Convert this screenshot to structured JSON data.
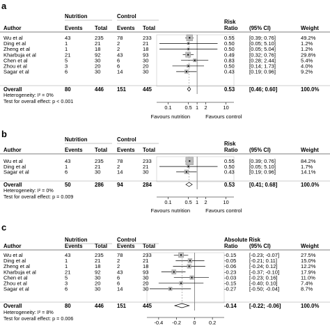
{
  "chart_data": [
    {
      "type": "forest",
      "panel_label": "a",
      "group_headers": [
        "Nutrition",
        "Control"
      ],
      "columns": [
        "Author",
        "Events",
        "Total",
        "Events",
        "Total",
        "Risk Ratio",
        "(95% CI)",
        "Weight"
      ],
      "studies": [
        {
          "author": "Wu et al",
          "e1": "43",
          "t1": "235",
          "e2": "78",
          "t2": "233",
          "est": "0.55",
          "ci": "[0.39; 0.76]",
          "w": "49.2%",
          "v": 0.55,
          "lo": 0.39,
          "hi": 0.76,
          "wn": 49.2
        },
        {
          "author": "Ding et al",
          "e1": "1",
          "t1": "21",
          "e2": "2",
          "t2": "21",
          "est": "0.50",
          "ci": "[0.05; 5.10]",
          "w": "1.2%",
          "v": 0.5,
          "lo": 0.05,
          "hi": 5.1,
          "wn": 1.2
        },
        {
          "author": "Zheng et al",
          "e1": "1",
          "t1": "18",
          "e2": "2",
          "t2": "18",
          "est": "0.50",
          "ci": "[0.05; 5.04]",
          "w": "1.2%",
          "v": 0.5,
          "lo": 0.05,
          "hi": 5.04,
          "wn": 1.2
        },
        {
          "author": "Kharbuja et al",
          "e1": "21",
          "t1": "92",
          "e2": "43",
          "t2": "93",
          "est": "0.49",
          "ci": "[0.32; 0.76]",
          "w": "29.8%",
          "v": 0.49,
          "lo": 0.32,
          "hi": 0.76,
          "wn": 29.8
        },
        {
          "author": "Chen et al",
          "e1": "5",
          "t1": "30",
          "e2": "6",
          "t2": "30",
          "est": "0.83",
          "ci": "[0.28; 2.44]",
          "w": "5.4%",
          "v": 0.83,
          "lo": 0.28,
          "hi": 2.44,
          "wn": 5.4
        },
        {
          "author": "Zhou et al",
          "e1": "3",
          "t1": "20",
          "e2": "6",
          "t2": "20",
          "est": "0.50",
          "ci": "[0.14; 1.73]",
          "w": "4.0%",
          "v": 0.5,
          "lo": 0.14,
          "hi": 1.73,
          "wn": 4.0
        },
        {
          "author": "Sagar et al",
          "e1": "6",
          "t1": "30",
          "e2": "14",
          "t2": "30",
          "est": "0.43",
          "ci": "[0.19; 0.96]",
          "w": "9.2%",
          "v": 0.43,
          "lo": 0.19,
          "hi": 0.96,
          "wn": 9.2
        }
      ],
      "overall": {
        "author": "Overall",
        "e1": "80",
        "t1": "446",
        "e2": "151",
        "t2": "445",
        "est": "0.53",
        "ci": "[0.46; 0.60]",
        "w": "100.0%",
        "v": 0.53,
        "lo": 0.46,
        "hi": 0.6
      },
      "heterogeneity": "Heterogeneity: I² = 0%",
      "test": "Test for overall effect: p < 0.001",
      "scale": "log",
      "xlim": [
        0.05,
        15
      ],
      "null_value": 1,
      "ticks": [
        {
          "v": 0.1,
          "label": "0.1"
        },
        {
          "v": 0.5,
          "label": "0.5"
        },
        {
          "v": 1,
          "label": "1"
        },
        {
          "v": 2,
          "label": "2"
        },
        {
          "v": 10,
          "label": "10"
        }
      ],
      "favours_left": "Favours nutrition",
      "favours_right": "Favours control"
    },
    {
      "type": "forest",
      "panel_label": "b",
      "group_headers": [
        "Nutrition",
        "Control"
      ],
      "columns": [
        "Author",
        "Events",
        "Total",
        "Events",
        "Total",
        "Risk Ratio",
        "(95% CI)",
        "Weight"
      ],
      "studies": [
        {
          "author": "Wu et al",
          "e1": "43",
          "t1": "235",
          "e2": "78",
          "t2": "233",
          "est": "0.55",
          "ci": "[0.39; 0.76]",
          "w": "84.2%",
          "v": 0.55,
          "lo": 0.39,
          "hi": 0.76,
          "wn": 84.2
        },
        {
          "author": "Ding et al",
          "e1": "1",
          "t1": "21",
          "e2": "2",
          "t2": "21",
          "est": "0.50",
          "ci": "[0.05; 5.10]",
          "w": "1.7%",
          "v": 0.5,
          "lo": 0.05,
          "hi": 5.1,
          "wn": 1.7
        },
        {
          "author": "Sagar et al",
          "e1": "6",
          "t1": "30",
          "e2": "14",
          "t2": "30",
          "est": "0.43",
          "ci": "[0.19; 0.96]",
          "w": "14.1%",
          "v": 0.43,
          "lo": 0.19,
          "hi": 0.96,
          "wn": 14.1
        }
      ],
      "overall": {
        "author": "Overall",
        "e1": "50",
        "t1": "286",
        "e2": "94",
        "t2": "284",
        "est": "0.53",
        "ci": "[0.41; 0.68]",
        "w": "100.0%",
        "v": 0.53,
        "lo": 0.41,
        "hi": 0.68
      },
      "heterogeneity": "Heterogeneity: I² = 0%",
      "test": "Test for overall effect: p = 0.009",
      "scale": "log",
      "xlim": [
        0.05,
        15
      ],
      "null_value": 1,
      "ticks": [
        {
          "v": 0.1,
          "label": "0.1"
        },
        {
          "v": 0.5,
          "label": "0.5"
        },
        {
          "v": 1,
          "label": "1"
        },
        {
          "v": 2,
          "label": "2"
        },
        {
          "v": 10,
          "label": "10"
        }
      ],
      "favours_left": "Favours nutrition",
      "favours_right": "Favours control"
    },
    {
      "type": "forest",
      "panel_label": "c",
      "group_headers": [
        "Nutrition",
        "Control"
      ],
      "columns": [
        "Author",
        "Events",
        "Total",
        "Events",
        "Total",
        "Absolute Risk Ratio",
        "(95% CI)",
        "Weight"
      ],
      "studies": [
        {
          "author": "Wu et al",
          "e1": "43",
          "t1": "235",
          "e2": "78",
          "t2": "233",
          "est": "-0.15",
          "ci": "[-0.23; -0.07]",
          "w": "27.5%",
          "v": -0.15,
          "lo": -0.23,
          "hi": -0.07,
          "wn": 27.5
        },
        {
          "author": "Ding et al",
          "e1": "1",
          "t1": "21",
          "e2": "2",
          "t2": "21",
          "est": "-0.05",
          "ci": "[-0.21; 0.11]",
          "w": "15.0%",
          "v": -0.05,
          "lo": -0.21,
          "hi": 0.11,
          "wn": 15.0
        },
        {
          "author": "Zheng et al",
          "e1": "1",
          "t1": "18",
          "e2": "2",
          "t2": "18",
          "est": "-0.06",
          "ci": "[-0.24; 0.12]",
          "w": "12.2%",
          "v": -0.06,
          "lo": -0.24,
          "hi": 0.12,
          "wn": 12.2
        },
        {
          "author": "Kharbuja et al",
          "e1": "21",
          "t1": "92",
          "e2": "43",
          "t2": "93",
          "est": "-0.23",
          "ci": "[-0.37; -0.10]",
          "w": "17.9%",
          "v": -0.23,
          "lo": -0.37,
          "hi": -0.1,
          "wn": 17.9
        },
        {
          "author": "Chen et al",
          "e1": "5",
          "t1": "30",
          "e2": "6",
          "t2": "30",
          "est": "-0.03",
          "ci": "[-0.23; 0.16]",
          "w": "11.0%",
          "v": -0.03,
          "lo": -0.23,
          "hi": 0.16,
          "wn": 11.0
        },
        {
          "author": "Zhou et al",
          "e1": "3",
          "t1": "20",
          "e2": "6",
          "t2": "20",
          "est": "-0.15",
          "ci": "[-0.40; 0.10]",
          "w": "7.4%",
          "v": -0.15,
          "lo": -0.4,
          "hi": 0.1,
          "wn": 7.4
        },
        {
          "author": "Sagar et al",
          "e1": "6",
          "t1": "30",
          "e2": "14",
          "t2": "30",
          "est": "-0.27",
          "ci": "[-0.50; -0.04]",
          "w": "8.7%",
          "v": -0.27,
          "lo": -0.5,
          "hi": -0.04,
          "wn": 8.7
        }
      ],
      "overall": {
        "author": "Overall",
        "e1": "80",
        "t1": "446",
        "e2": "151",
        "t2": "445",
        "est": "-0.14",
        "ci": "[-0.22; -0.06]",
        "w": "100.0%",
        "v": -0.14,
        "lo": -0.22,
        "hi": -0.06
      },
      "heterogeneity": "Heterogeneity: I² = 8%",
      "test": "Test for overall effect: p = 0.006",
      "scale": "linear",
      "xlim": [
        -0.5,
        0.3
      ],
      "null_value": 0,
      "ticks": [
        {
          "v": -0.4,
          "label": "-0.4"
        },
        {
          "v": -0.2,
          "label": "-0.2"
        },
        {
          "v": 0,
          "label": "0"
        },
        {
          "v": 0.2,
          "label": "0.2"
        }
      ]
    }
  ]
}
